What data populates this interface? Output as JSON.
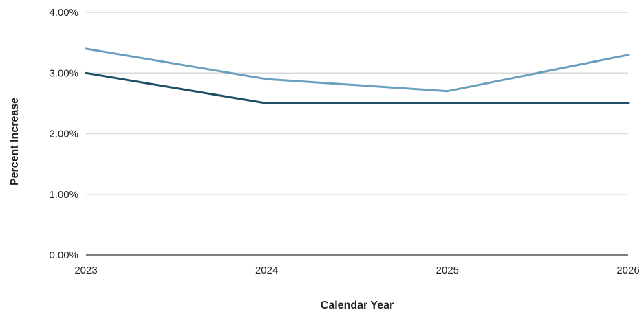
{
  "chart_data": {
    "type": "line",
    "title": "",
    "xlabel": "Calendar Year",
    "ylabel": "Percent Increase",
    "x": [
      "2023",
      "2024",
      "2025",
      "2026"
    ],
    "ylim": [
      0,
      4
    ],
    "yticks": [
      0,
      1,
      2,
      3,
      4
    ],
    "ytick_labels": [
      "0.00%",
      "1.00%",
      "2.00%",
      "3.00%",
      "4.00%"
    ],
    "grid": true,
    "legend": "none",
    "series": [
      {
        "values": [
          3.4,
          2.9,
          2.7,
          3.3
        ],
        "color": "#6a9fbf"
      },
      {
        "values": [
          3.0,
          2.5,
          2.5,
          2.5
        ],
        "color": "#1f4e68"
      }
    ]
  }
}
